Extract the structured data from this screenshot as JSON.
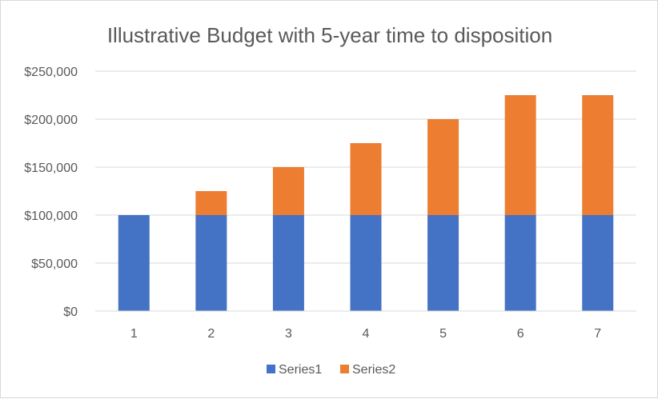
{
  "chart_data": {
    "type": "bar",
    "stacked": true,
    "title": "Illustrative Budget with 5-year time to disposition",
    "xlabel": "",
    "ylabel": "",
    "categories": [
      "1",
      "2",
      "3",
      "4",
      "5",
      "6",
      "7"
    ],
    "series": [
      {
        "name": "Series1",
        "color": "#4472c4",
        "values": [
          100000,
          100000,
          100000,
          100000,
          100000,
          100000,
          100000
        ]
      },
      {
        "name": "Series2",
        "color": "#ed7d31",
        "values": [
          0,
          25000,
          50000,
          75000,
          100000,
          125000,
          125000
        ]
      }
    ],
    "ylim": [
      0,
      250000
    ],
    "yticks": [
      0,
      50000,
      100000,
      150000,
      200000,
      250000
    ],
    "ytick_labels": [
      "$0",
      "$50,000",
      "$100,000",
      "$150,000",
      "$200,000",
      "$250,000"
    ],
    "grid": true,
    "legend": "bottom"
  }
}
